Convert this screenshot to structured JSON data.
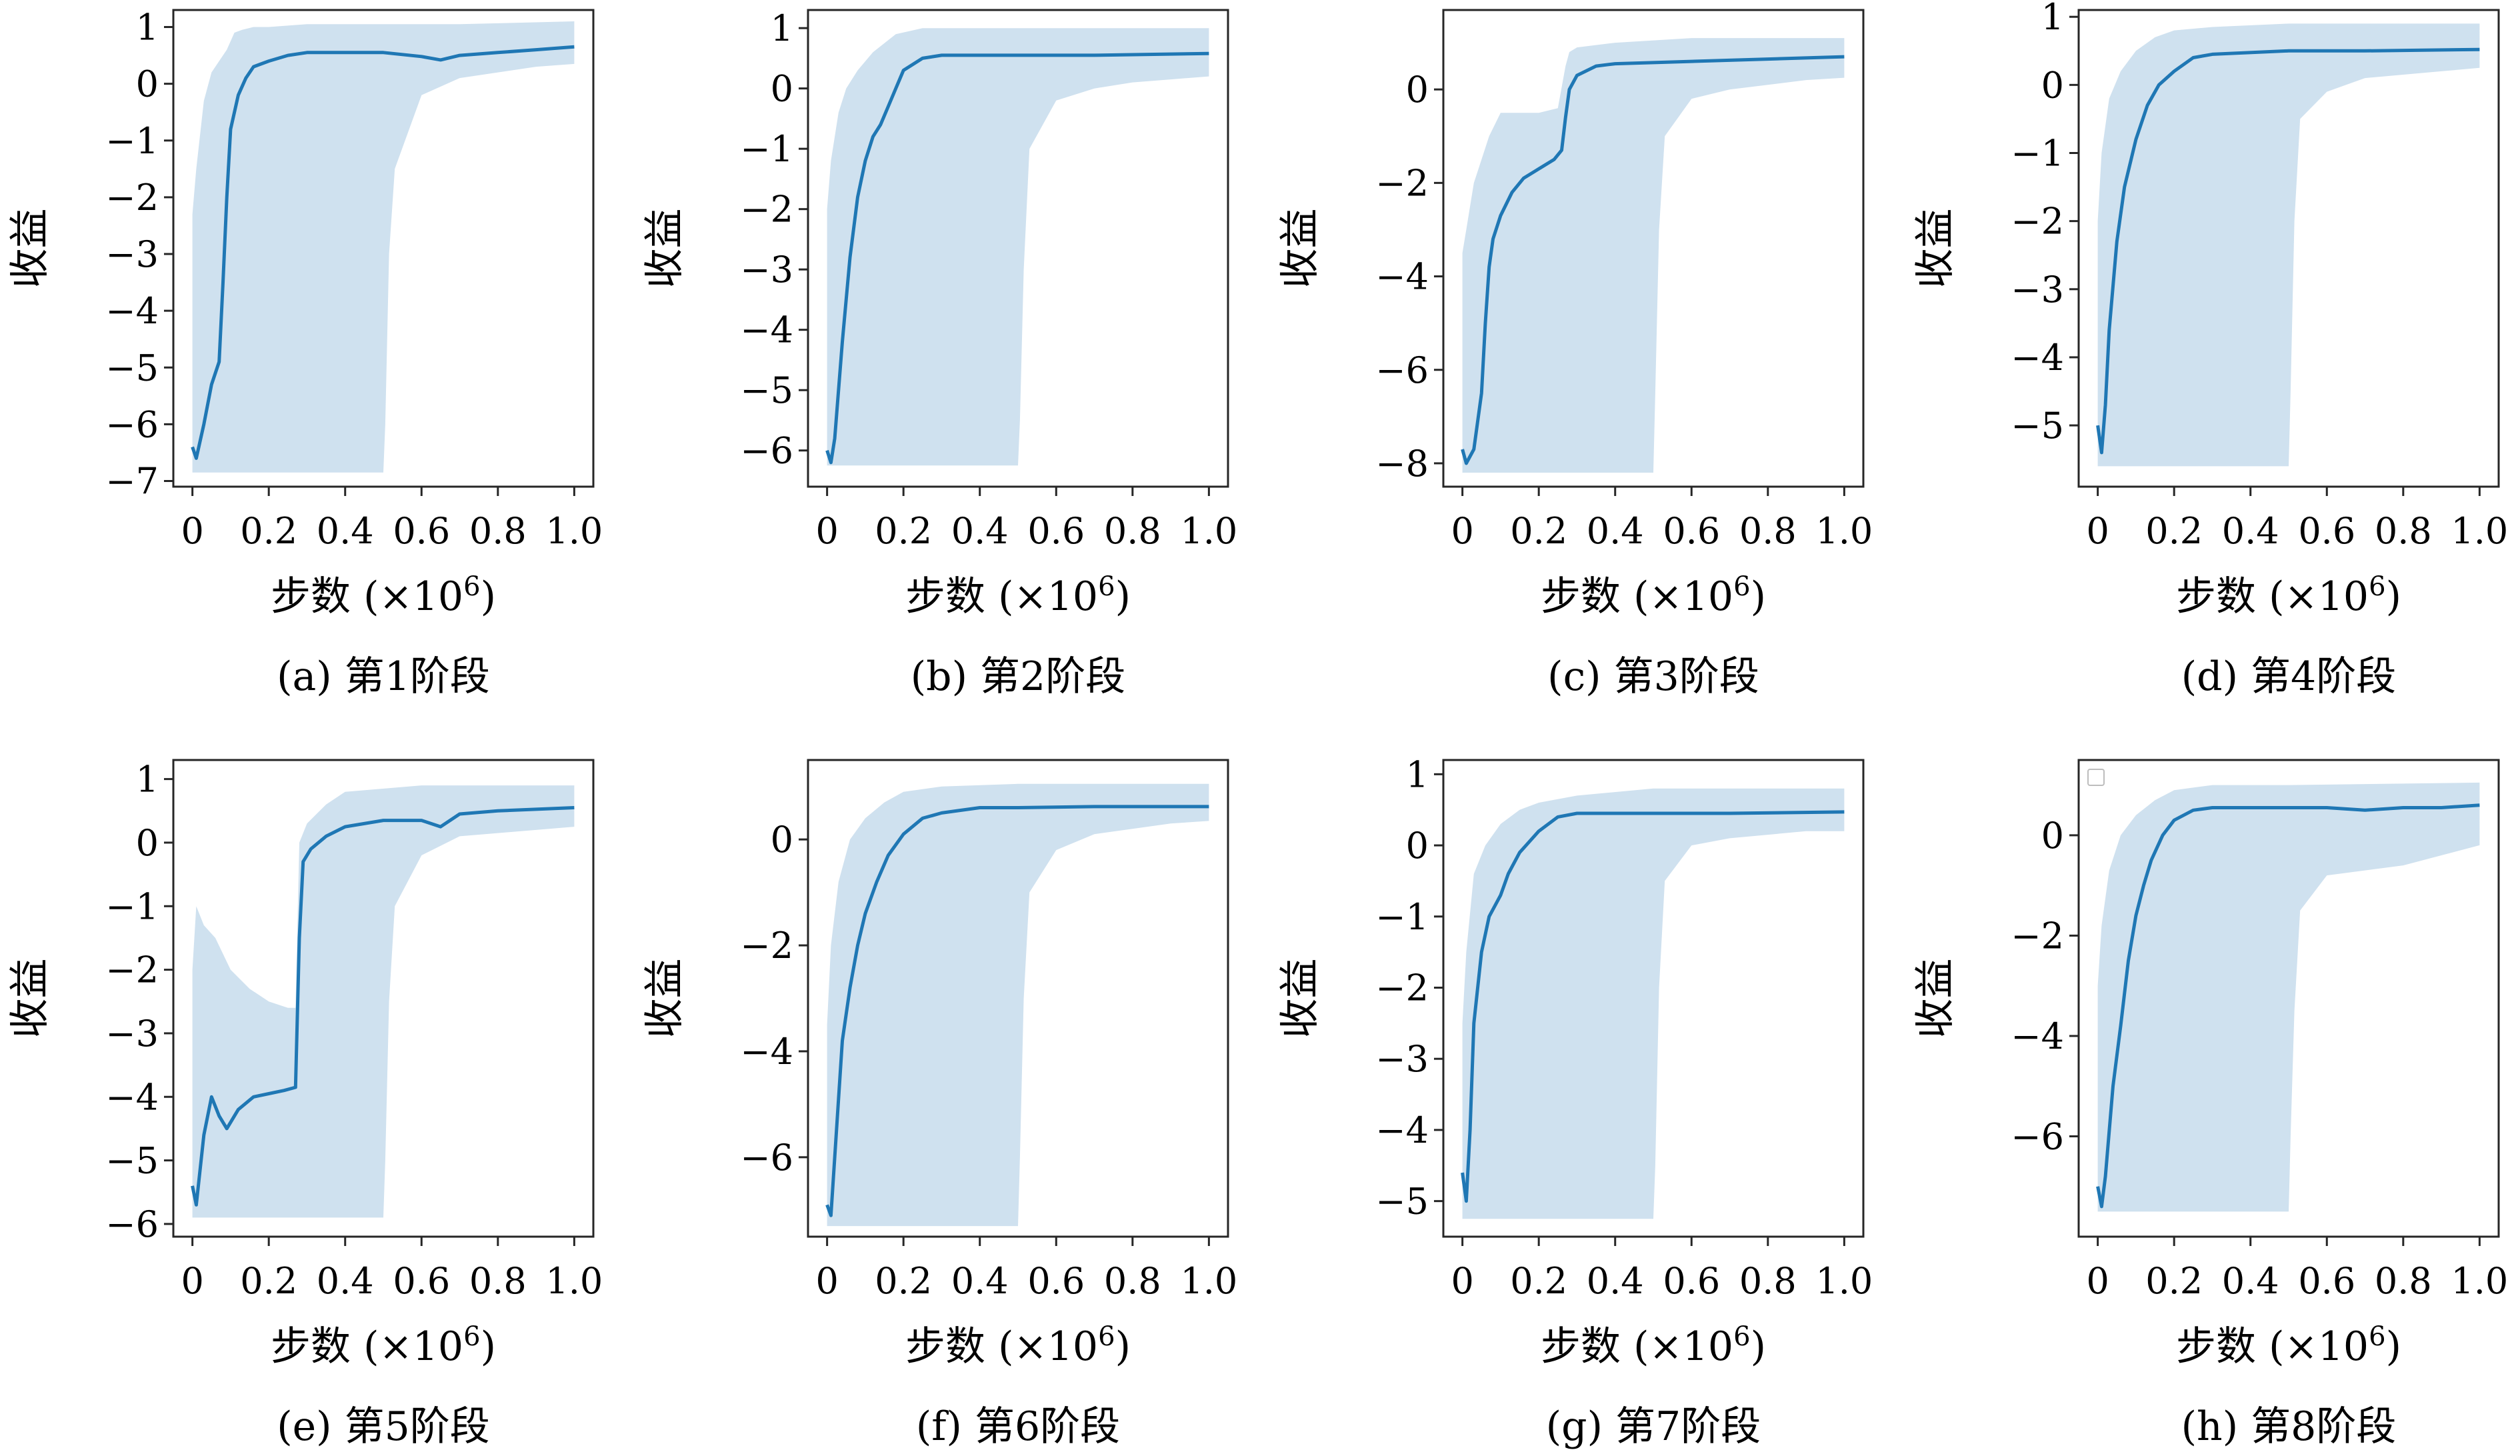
{
  "chart_data": [
    {
      "type": "area",
      "caption": "(a) 第1阶段",
      "xlabel": "步数 (×10⁶)",
      "ylabel": "收益",
      "xlim": [
        -0.05,
        1.05
      ],
      "ylim": [
        -7.1,
        1.3
      ],
      "xticks": [
        0,
        0.2,
        0.4,
        0.6,
        0.8,
        1.0
      ],
      "xticklabels": [
        "0",
        "0.2",
        "0.4",
        "0.6",
        "0.8",
        "1.0"
      ],
      "yticks": [
        -7,
        -6,
        -5,
        -4,
        -3,
        -2,
        -1,
        0,
        1
      ],
      "yticklabels": [
        "−7",
        "−6",
        "−5",
        "−4",
        "−3",
        "−2",
        "−1",
        "0",
        "1"
      ],
      "legend": false,
      "series": [
        {
          "role": "mean",
          "x": [
            0,
            0.01,
            0.03,
            0.05,
            0.07,
            0.08,
            0.09,
            0.1,
            0.12,
            0.14,
            0.16,
            0.2,
            0.25,
            0.3,
            0.4,
            0.5,
            0.6,
            0.65,
            0.7,
            0.8,
            0.9,
            1.0
          ],
          "y": [
            -6.4,
            -6.6,
            -6.0,
            -5.3,
            -4.9,
            -3.5,
            -2.0,
            -0.8,
            -0.2,
            0.1,
            0.3,
            0.4,
            0.5,
            0.55,
            0.55,
            0.55,
            0.48,
            0.42,
            0.5,
            0.55,
            0.6,
            0.65
          ]
        },
        {
          "role": "max",
          "x": [
            0,
            0.01,
            0.03,
            0.05,
            0.07,
            0.09,
            0.11,
            0.13,
            0.16,
            0.2,
            0.3,
            0.5,
            0.7,
            1.0
          ],
          "y": [
            -2.3,
            -1.5,
            -0.3,
            0.2,
            0.4,
            0.6,
            0.9,
            0.95,
            1.0,
            1.0,
            1.05,
            1.05,
            1.05,
            1.1
          ]
        },
        {
          "role": "min",
          "x": [
            0,
            0.5,
            0.505,
            0.515,
            0.53,
            0.6,
            0.7,
            0.8,
            0.9,
            1.0
          ],
          "y": [
            -6.85,
            -6.85,
            -6.0,
            -3.0,
            -1.5,
            -0.2,
            0.1,
            0.2,
            0.3,
            0.35
          ]
        }
      ]
    },
    {
      "type": "area",
      "caption": "(b) 第2阶段",
      "xlabel": "步数 (×10⁶)",
      "ylabel": "收益",
      "xlim": [
        -0.05,
        1.05
      ],
      "ylim": [
        -6.6,
        1.3
      ],
      "xticks": [
        0,
        0.2,
        0.4,
        0.6,
        0.8,
        1.0
      ],
      "xticklabels": [
        "0",
        "0.2",
        "0.4",
        "0.6",
        "0.8",
        "1.0"
      ],
      "yticks": [
        -6,
        -5,
        -4,
        -3,
        -2,
        -1,
        0,
        1
      ],
      "yticklabels": [
        "−6",
        "−5",
        "−4",
        "−3",
        "−2",
        "−1",
        "0",
        "1"
      ],
      "legend": false,
      "series": [
        {
          "role": "mean",
          "x": [
            0,
            0.01,
            0.02,
            0.04,
            0.06,
            0.08,
            0.1,
            0.12,
            0.14,
            0.16,
            0.18,
            0.2,
            0.25,
            0.3,
            0.5,
            0.7,
            1.0
          ],
          "y": [
            -6.0,
            -6.2,
            -5.8,
            -4.2,
            -2.8,
            -1.8,
            -1.2,
            -0.8,
            -0.6,
            -0.3,
            0.0,
            0.3,
            0.5,
            0.55,
            0.55,
            0.55,
            0.58
          ]
        },
        {
          "role": "max",
          "x": [
            0,
            0.01,
            0.03,
            0.05,
            0.08,
            0.12,
            0.18,
            0.25,
            0.5,
            1.0
          ],
          "y": [
            -2.0,
            -1.2,
            -0.4,
            0.0,
            0.3,
            0.6,
            0.9,
            1.0,
            1.0,
            1.0
          ]
        },
        {
          "role": "min",
          "x": [
            0,
            0.5,
            0.505,
            0.515,
            0.53,
            0.6,
            0.7,
            0.8,
            0.9,
            1.0
          ],
          "y": [
            -6.25,
            -6.25,
            -5.5,
            -3.0,
            -1.0,
            -0.2,
            0.0,
            0.1,
            0.15,
            0.2
          ]
        }
      ]
    },
    {
      "type": "area",
      "caption": "(c) 第3阶段",
      "xlabel": "步数 (×10⁶)",
      "ylabel": "收益",
      "xlim": [
        -0.05,
        1.05
      ],
      "ylim": [
        -8.5,
        1.7
      ],
      "xticks": [
        0,
        0.2,
        0.4,
        0.6,
        0.8,
        1.0
      ],
      "xticklabels": [
        "0",
        "0.2",
        "0.4",
        "0.6",
        "0.8",
        "1.0"
      ],
      "yticks": [
        -8,
        -6,
        -4,
        -2,
        0
      ],
      "yticklabels": [
        "−8",
        "−6",
        "−4",
        "−2",
        "0"
      ],
      "legend": false,
      "series": [
        {
          "role": "mean",
          "x": [
            0,
            0.01,
            0.03,
            0.05,
            0.06,
            0.07,
            0.08,
            0.1,
            0.13,
            0.16,
            0.2,
            0.24,
            0.26,
            0.27,
            0.28,
            0.3,
            0.35,
            0.4,
            0.6,
            0.8,
            1.0
          ],
          "y": [
            -7.7,
            -8.0,
            -7.7,
            -6.5,
            -5.0,
            -3.8,
            -3.2,
            -2.7,
            -2.2,
            -1.9,
            -1.7,
            -1.5,
            -1.3,
            -0.6,
            0.0,
            0.3,
            0.5,
            0.55,
            0.6,
            0.65,
            0.7
          ]
        },
        {
          "role": "max",
          "x": [
            0,
            0.01,
            0.03,
            0.05,
            0.07,
            0.1,
            0.13,
            0.2,
            0.25,
            0.27,
            0.28,
            0.3,
            0.4,
            0.6,
            1.0
          ],
          "y": [
            -3.5,
            -3.0,
            -2.0,
            -1.5,
            -1.0,
            -0.5,
            -0.5,
            -0.5,
            -0.4,
            0.5,
            0.8,
            0.9,
            1.0,
            1.1,
            1.1
          ]
        },
        {
          "role": "min",
          "x": [
            0,
            0.5,
            0.505,
            0.515,
            0.53,
            0.6,
            0.7,
            0.8,
            0.9,
            1.0
          ],
          "y": [
            -8.2,
            -8.2,
            -6.5,
            -3.0,
            -1.0,
            -0.2,
            0.0,
            0.1,
            0.2,
            0.25
          ]
        }
      ]
    },
    {
      "type": "area",
      "caption": "(d) 第4阶段",
      "xlabel": "步数 (×10⁶)",
      "ylabel": "收益",
      "xlim": [
        -0.05,
        1.05
      ],
      "ylim": [
        -5.9,
        1.1
      ],
      "xticks": [
        0,
        0.2,
        0.4,
        0.6,
        0.8,
        1.0
      ],
      "xticklabels": [
        "0",
        "0.2",
        "0.4",
        "0.6",
        "0.8",
        "1.0"
      ],
      "yticks": [
        -5,
        -4,
        -3,
        -2,
        -1,
        0,
        1
      ],
      "yticklabels": [
        "−5",
        "−4",
        "−3",
        "−2",
        "−1",
        "0",
        "1"
      ],
      "legend": false,
      "series": [
        {
          "role": "mean",
          "x": [
            0,
            0.01,
            0.02,
            0.03,
            0.05,
            0.07,
            0.1,
            0.13,
            0.16,
            0.2,
            0.25,
            0.3,
            0.5,
            0.7,
            1.0
          ],
          "y": [
            -5.0,
            -5.4,
            -4.7,
            -3.6,
            -2.3,
            -1.5,
            -0.8,
            -0.3,
            0.0,
            0.2,
            0.4,
            0.45,
            0.5,
            0.5,
            0.52
          ]
        },
        {
          "role": "max",
          "x": [
            0,
            0.01,
            0.03,
            0.06,
            0.1,
            0.15,
            0.2,
            0.3,
            0.5,
            1.0
          ],
          "y": [
            -2.0,
            -1.0,
            -0.2,
            0.2,
            0.5,
            0.7,
            0.8,
            0.85,
            0.9,
            0.9
          ]
        },
        {
          "role": "min",
          "x": [
            0,
            0.5,
            0.505,
            0.515,
            0.53,
            0.6,
            0.7,
            0.8,
            0.9,
            1.0
          ],
          "y": [
            -5.6,
            -5.6,
            -4.5,
            -2.0,
            -0.5,
            -0.1,
            0.1,
            0.15,
            0.2,
            0.25
          ]
        }
      ]
    },
    {
      "type": "area",
      "caption": "(e) 第5阶段",
      "xlabel": "步数 (×10⁶)",
      "ylabel": "收益",
      "xlim": [
        -0.05,
        1.05
      ],
      "ylim": [
        -6.2,
        1.3
      ],
      "xticks": [
        0,
        0.2,
        0.4,
        0.6,
        0.8,
        1.0
      ],
      "xticklabels": [
        "0",
        "0.2",
        "0.4",
        "0.6",
        "0.8",
        "1.0"
      ],
      "yticks": [
        -6,
        -5,
        -4,
        -3,
        -2,
        -1,
        0,
        1
      ],
      "yticklabels": [
        "−6",
        "−5",
        "−4",
        "−3",
        "−2",
        "−1",
        "0",
        "1"
      ],
      "legend": false,
      "series": [
        {
          "role": "mean",
          "x": [
            0,
            0.01,
            0.03,
            0.05,
            0.07,
            0.09,
            0.12,
            0.16,
            0.2,
            0.24,
            0.27,
            0.28,
            0.29,
            0.31,
            0.35,
            0.4,
            0.5,
            0.6,
            0.65,
            0.7,
            0.8,
            1.0
          ],
          "y": [
            -5.4,
            -5.7,
            -4.6,
            -4.0,
            -4.3,
            -4.5,
            -4.2,
            -4.0,
            -3.95,
            -3.9,
            -3.85,
            -1.5,
            -0.3,
            -0.1,
            0.1,
            0.25,
            0.35,
            0.35,
            0.25,
            0.45,
            0.5,
            0.55
          ]
        },
        {
          "role": "max",
          "x": [
            0,
            0.01,
            0.03,
            0.06,
            0.1,
            0.15,
            0.2,
            0.25,
            0.27,
            0.28,
            0.3,
            0.35,
            0.4,
            0.6,
            1.0
          ],
          "y": [
            -2.0,
            -1.0,
            -1.3,
            -1.5,
            -2.0,
            -2.3,
            -2.5,
            -2.6,
            -2.6,
            0.0,
            0.3,
            0.6,
            0.8,
            0.9,
            0.9
          ]
        },
        {
          "role": "min",
          "x": [
            0,
            0.5,
            0.505,
            0.515,
            0.53,
            0.6,
            0.7,
            0.8,
            0.9,
            1.0
          ],
          "y": [
            -5.9,
            -5.9,
            -5.0,
            -2.5,
            -1.0,
            -0.2,
            0.1,
            0.15,
            0.2,
            0.25
          ]
        }
      ]
    },
    {
      "type": "area",
      "caption": "(f) 第6阶段",
      "xlabel": "步数 (×10⁶)",
      "ylabel": "收益",
      "xlim": [
        -0.05,
        1.05
      ],
      "ylim": [
        -7.5,
        1.5
      ],
      "xticks": [
        0,
        0.2,
        0.4,
        0.6,
        0.8,
        1.0
      ],
      "xticklabels": [
        "0",
        "0.2",
        "0.4",
        "0.6",
        "0.8",
        "1.0"
      ],
      "yticks": [
        -6,
        -4,
        -2,
        0
      ],
      "yticklabels": [
        "−6",
        "−4",
        "−2",
        "0"
      ],
      "legend": false,
      "series": [
        {
          "role": "mean",
          "x": [
            0,
            0.01,
            0.02,
            0.04,
            0.06,
            0.08,
            0.1,
            0.13,
            0.16,
            0.2,
            0.25,
            0.3,
            0.4,
            0.5,
            0.7,
            1.0
          ],
          "y": [
            -6.9,
            -7.1,
            -6.0,
            -3.8,
            -2.8,
            -2.0,
            -1.4,
            -0.8,
            -0.3,
            0.1,
            0.4,
            0.5,
            0.6,
            0.6,
            0.62,
            0.62
          ]
        },
        {
          "role": "max",
          "x": [
            0,
            0.01,
            0.03,
            0.06,
            0.1,
            0.15,
            0.2,
            0.3,
            0.5,
            1.0
          ],
          "y": [
            -3.5,
            -2.0,
            -0.8,
            0.0,
            0.4,
            0.7,
            0.9,
            1.0,
            1.05,
            1.05
          ]
        },
        {
          "role": "min",
          "x": [
            0,
            0.5,
            0.505,
            0.515,
            0.53,
            0.6,
            0.7,
            0.8,
            0.9,
            1.0
          ],
          "y": [
            -7.3,
            -7.3,
            -6.0,
            -3.0,
            -1.0,
            -0.2,
            0.1,
            0.2,
            0.3,
            0.35
          ]
        }
      ]
    },
    {
      "type": "area",
      "caption": "(g) 第7阶段",
      "xlabel": "步数 (×10⁶)",
      "ylabel": "收益",
      "xlim": [
        -0.05,
        1.05
      ],
      "ylim": [
        -5.5,
        1.2
      ],
      "xticks": [
        0,
        0.2,
        0.4,
        0.6,
        0.8,
        1.0
      ],
      "xticklabels": [
        "0",
        "0.2",
        "0.4",
        "0.6",
        "0.8",
        "1.0"
      ],
      "yticks": [
        -5,
        -4,
        -3,
        -2,
        -1,
        0,
        1
      ],
      "yticklabels": [
        "−5",
        "−4",
        "−3",
        "−2",
        "−1",
        "0",
        "1"
      ],
      "legend": false,
      "series": [
        {
          "role": "mean",
          "x": [
            0,
            0.01,
            0.02,
            0.03,
            0.05,
            0.07,
            0.1,
            0.12,
            0.15,
            0.2,
            0.25,
            0.3,
            0.5,
            0.7,
            1.0
          ],
          "y": [
            -4.6,
            -5.0,
            -4.0,
            -2.5,
            -1.5,
            -1.0,
            -0.7,
            -0.4,
            -0.1,
            0.2,
            0.4,
            0.45,
            0.45,
            0.45,
            0.47
          ]
        },
        {
          "role": "max",
          "x": [
            0,
            0.01,
            0.03,
            0.06,
            0.1,
            0.15,
            0.2,
            0.3,
            0.5,
            1.0
          ],
          "y": [
            -2.5,
            -1.5,
            -0.4,
            0.0,
            0.3,
            0.5,
            0.6,
            0.7,
            0.8,
            0.8
          ]
        },
        {
          "role": "min",
          "x": [
            0,
            0.5,
            0.505,
            0.515,
            0.53,
            0.6,
            0.7,
            0.8,
            0.9,
            1.0
          ],
          "y": [
            -5.25,
            -5.25,
            -4.5,
            -2.0,
            -0.5,
            0.0,
            0.1,
            0.15,
            0.2,
            0.2
          ]
        }
      ]
    },
    {
      "type": "area",
      "caption": "(h) 第8阶段",
      "xlabel": "步数 (×10⁶)",
      "ylabel": "收益",
      "xlim": [
        -0.05,
        1.05
      ],
      "ylim": [
        -8.0,
        1.5
      ],
      "xticks": [
        0,
        0.2,
        0.4,
        0.6,
        0.8,
        1.0
      ],
      "xticklabels": [
        "0",
        "0.2",
        "0.4",
        "0.6",
        "0.8",
        "1.0"
      ],
      "yticks": [
        -6,
        -4,
        -2,
        0
      ],
      "yticklabels": [
        "−6",
        "−4",
        "−2",
        "0"
      ],
      "legend": true,
      "series": [
        {
          "role": "mean",
          "x": [
            0,
            0.01,
            0.02,
            0.04,
            0.06,
            0.08,
            0.1,
            0.12,
            0.14,
            0.17,
            0.2,
            0.25,
            0.3,
            0.5,
            0.6,
            0.7,
            0.8,
            0.9,
            1.0
          ],
          "y": [
            -7.0,
            -7.4,
            -6.8,
            -5.0,
            -3.8,
            -2.5,
            -1.6,
            -1.0,
            -0.5,
            0.0,
            0.3,
            0.5,
            0.55,
            0.55,
            0.55,
            0.5,
            0.55,
            0.55,
            0.6
          ]
        },
        {
          "role": "max",
          "x": [
            0,
            0.01,
            0.03,
            0.06,
            0.1,
            0.15,
            0.2,
            0.3,
            0.5,
            1.0
          ],
          "y": [
            -3.0,
            -1.8,
            -0.7,
            0.0,
            0.4,
            0.7,
            0.9,
            1.0,
            1.0,
            1.05
          ]
        },
        {
          "role": "min",
          "x": [
            0,
            0.5,
            0.505,
            0.515,
            0.53,
            0.6,
            0.7,
            0.8,
            0.9,
            1.0
          ],
          "y": [
            -7.5,
            -7.5,
            -6.0,
            -3.5,
            -1.5,
            -0.8,
            -0.7,
            -0.6,
            -0.4,
            -0.2
          ]
        }
      ]
    }
  ]
}
